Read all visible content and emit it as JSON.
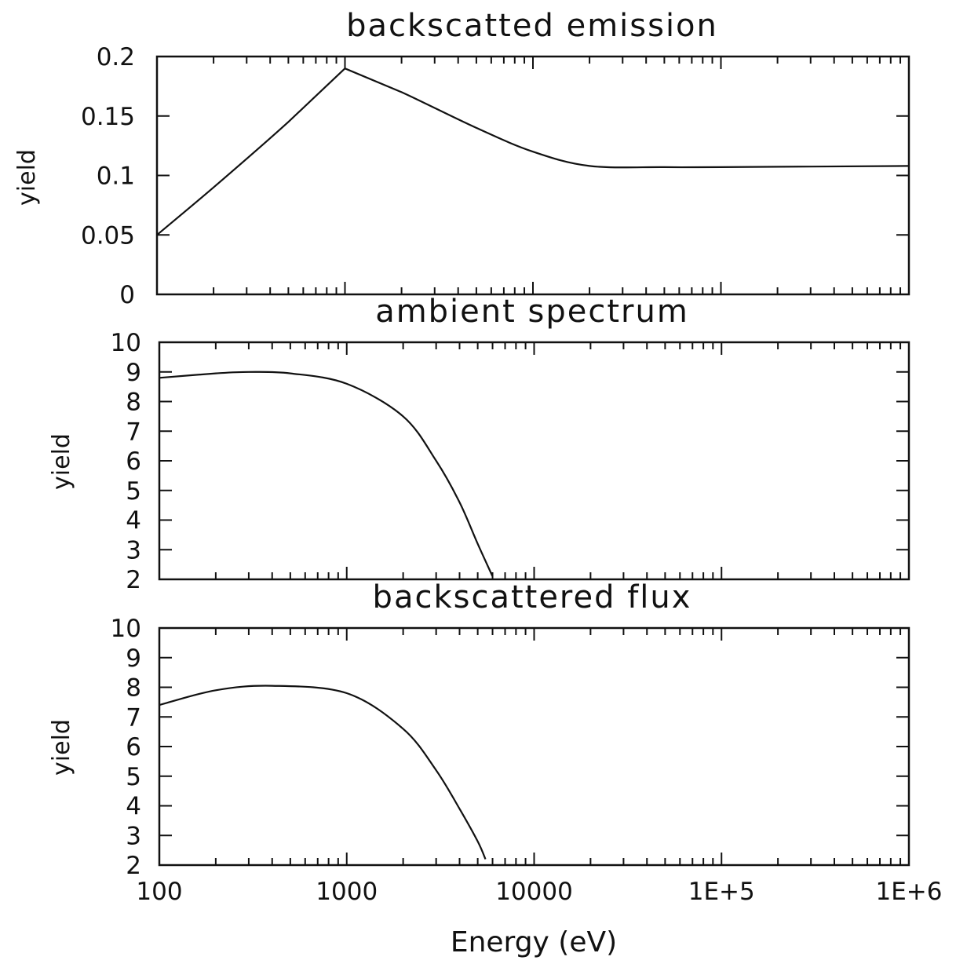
{
  "chart_data": [
    {
      "type": "line",
      "title": "backscatted emission",
      "ylabel": "yield",
      "xlabel": "",
      "x_scale": "log",
      "xlim": [
        100,
        1000000
      ],
      "ylim": [
        0,
        0.2
      ],
      "y_ticks": [
        0,
        0.05,
        0.1,
        0.15,
        0.2
      ],
      "y_tick_labels": [
        "0",
        "0.05",
        "0.1",
        "0.15",
        "0.2"
      ],
      "series": [
        {
          "x": [
            100,
            200,
            500,
            1000,
            2000,
            5000,
            10000,
            20000,
            50000,
            100000,
            1000000
          ],
          "y": [
            0.05,
            0.09,
            0.145,
            0.19,
            0.17,
            0.14,
            0.12,
            0.108,
            0.107,
            0.107,
            0.108
          ]
        }
      ],
      "grid": false
    },
    {
      "type": "line",
      "title": "ambient spectrum",
      "ylabel": "yield",
      "xlabel": "",
      "x_scale": "log",
      "xlim": [
        100,
        1000000
      ],
      "ylim": [
        2,
        10
      ],
      "y_ticks": [
        2,
        3,
        4,
        5,
        6,
        7,
        8,
        9,
        10
      ],
      "y_tick_labels": [
        "2",
        "3",
        "4",
        "5",
        "6",
        "7",
        "8",
        "9",
        "10"
      ],
      "series": [
        {
          "x": [
            100,
            200,
            300,
            500,
            1000,
            2000,
            3000,
            4000,
            5000,
            6000
          ],
          "y": [
            8.8,
            8.95,
            9.0,
            8.95,
            8.6,
            7.5,
            6.0,
            4.6,
            3.2,
            2.1
          ]
        }
      ],
      "grid": false
    },
    {
      "type": "line",
      "title": "backscattered flux",
      "ylabel": "yield",
      "xlabel": "Energy (eV)",
      "x_scale": "log",
      "xlim": [
        100,
        1000000
      ],
      "ylim": [
        2,
        10
      ],
      "y_ticks": [
        2,
        3,
        4,
        5,
        6,
        7,
        8,
        9,
        10
      ],
      "y_tick_labels": [
        "2",
        "3",
        "4",
        "5",
        "6",
        "7",
        "8",
        "9",
        "10"
      ],
      "x_ticks": [
        100,
        1000,
        10000,
        100000,
        1000000
      ],
      "x_tick_labels": [
        "100",
        "1000",
        "10000",
        "1E+5",
        "1E+6"
      ],
      "series": [
        {
          "x": [
            100,
            200,
            400,
            1000,
            2000,
            3000,
            4000,
            5000,
            5500
          ],
          "y": [
            7.4,
            7.9,
            8.05,
            7.8,
            6.6,
            5.2,
            3.9,
            2.8,
            2.2
          ]
        }
      ],
      "grid": false
    }
  ]
}
